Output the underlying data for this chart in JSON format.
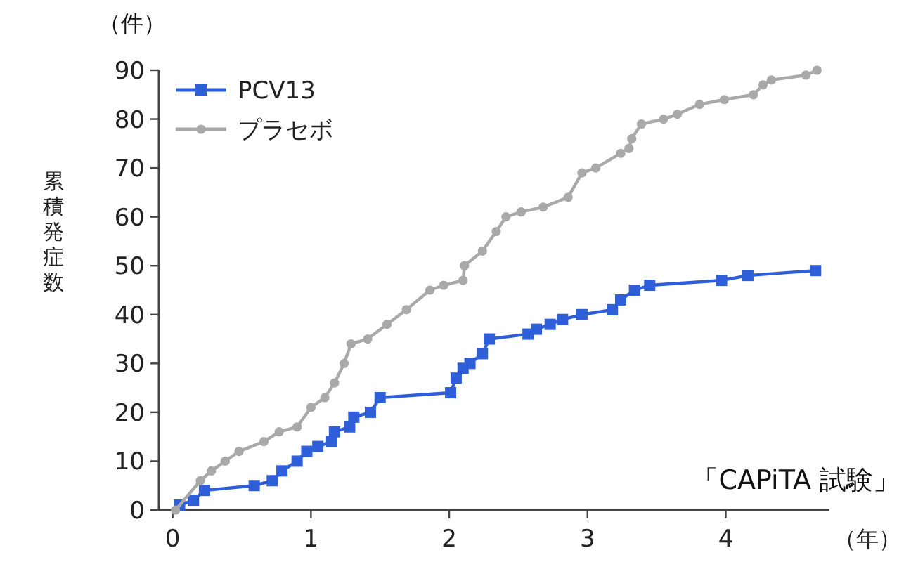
{
  "chart_data": {
    "type": "line",
    "xlabel": "（年）",
    "ylabel": "累積発症数",
    "annotations": [
      "（件）",
      "「CAPiTA 試験」"
    ],
    "xlim": [
      -0.1,
      4.75
    ],
    "xticks": [
      0,
      1,
      2,
      3,
      4
    ],
    "ylim": [
      0,
      90
    ],
    "yticks": [
      0,
      10,
      20,
      30,
      40,
      50,
      60,
      70,
      80,
      90
    ],
    "grid": false,
    "legend": "top left",
    "series": [
      {
        "name": "PCV13",
        "color": "#2f5fd8",
        "marker": "square",
        "x": [
          0.05,
          0.15,
          0.23,
          0.59,
          0.72,
          0.79,
          0.9,
          0.97,
          1.05,
          1.15,
          1.17,
          1.28,
          1.31,
          1.43,
          1.5,
          2.01,
          2.05,
          2.1,
          2.15,
          2.24,
          2.29,
          2.57,
          2.63,
          2.73,
          2.82,
          2.96,
          3.18,
          3.24,
          3.34,
          3.45,
          3.97,
          4.16,
          4.65
        ],
        "values": [
          1,
          2,
          4,
          5,
          6,
          8,
          10,
          12,
          13,
          14,
          16,
          17,
          19,
          20,
          23,
          24,
          27,
          29,
          30,
          32,
          35,
          36,
          37,
          38,
          39,
          40,
          41,
          43,
          45,
          46,
          47,
          48,
          49
        ]
      },
      {
        "name": "プラセボ",
        "color": "#a9a9a9",
        "marker": "circle",
        "x": [
          0.02,
          0.2,
          0.28,
          0.38,
          0.48,
          0.66,
          0.77,
          0.9,
          1.0,
          1.1,
          1.17,
          1.24,
          1.29,
          1.41,
          1.55,
          1.69,
          1.86,
          1.96,
          2.1,
          2.11,
          2.24,
          2.34,
          2.41,
          2.52,
          2.68,
          2.86,
          2.96,
          3.06,
          3.24,
          3.3,
          3.32,
          3.39,
          3.55,
          3.65,
          3.81,
          3.99,
          4.2,
          4.27,
          4.33,
          4.58,
          4.66
        ],
        "values": [
          0,
          6,
          8,
          10,
          12,
          14,
          16,
          17,
          21,
          23,
          26,
          30,
          34,
          35,
          38,
          41,
          45,
          46,
          47,
          50,
          53,
          57,
          60,
          61,
          62,
          64,
          69,
          70,
          73,
          74,
          76,
          79,
          80,
          81,
          83,
          84,
          85,
          87,
          88,
          89,
          90
        ]
      }
    ]
  }
}
